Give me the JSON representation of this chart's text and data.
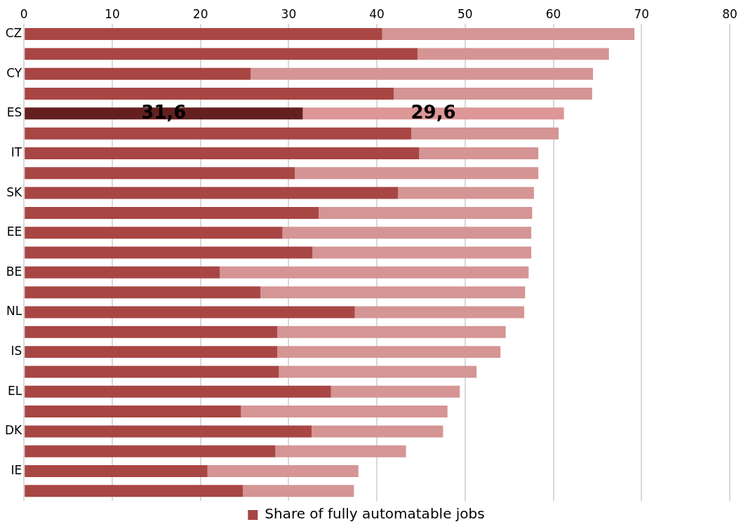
{
  "chart_data": {
    "type": "bar",
    "orientation": "horizontal",
    "stacked": true,
    "categories": [
      "CZ",
      null,
      "CY",
      null,
      "ES",
      null,
      "IT",
      null,
      "SK",
      null,
      "EE",
      null,
      "BE",
      null,
      "NL",
      null,
      "IS",
      null,
      "EL",
      null,
      "DK",
      null,
      "IE",
      null
    ],
    "series": [
      {
        "name": "Share of fully automatable jobs",
        "color": "#a84644",
        "colors": [
          "#a84644",
          "#a84644",
          "#a84644",
          "#a84644",
          "#64201f",
          "#a84644",
          "#a84644",
          "#a84644",
          "#a84644",
          "#a84644",
          "#a84644",
          "#a84644",
          "#a84644",
          "#a84644",
          "#a84644",
          "#a84644",
          "#a84644",
          "#a84644",
          "#a84644",
          "#a84644",
          "#a84644",
          "#a84644",
          "#a84644",
          "#a84644"
        ],
        "values": [
          40.6,
          44.6,
          25.7,
          41.9,
          31.6,
          43.9,
          44.8,
          30.7,
          42.4,
          33.4,
          29.3,
          32.7,
          22.2,
          26.8,
          37.5,
          28.7,
          28.7,
          28.9,
          34.8,
          24.6,
          32.6,
          28.5,
          20.8,
          24.8
        ],
        "value_labels": [
          null,
          null,
          null,
          null,
          "31,6",
          null,
          null,
          null,
          null,
          null,
          null,
          null,
          null,
          null,
          null,
          null,
          null,
          null,
          null,
          null,
          null,
          null,
          null,
          null
        ]
      },
      {
        "color": "#d49594",
        "colors": [
          "#d49594",
          "#d49594",
          "#d49594",
          "#d49594",
          "#dc9796",
          "#d49594",
          "#d49594",
          "#d49594",
          "#d49594",
          "#d49594",
          "#d49594",
          "#d49594",
          "#d49594",
          "#d49594",
          "#d49594",
          "#d49594",
          "#d49594",
          "#d49594",
          "#d49594",
          "#d49594",
          "#d49594",
          "#d49594",
          "#d49594",
          "#d49594"
        ],
        "values": [
          28.6,
          21.7,
          38.8,
          22.5,
          29.6,
          16.7,
          13.5,
          27.6,
          15.4,
          24.2,
          28.2,
          24.8,
          35.0,
          30.0,
          19.2,
          25.9,
          25.3,
          22.4,
          14.6,
          23.4,
          14.9,
          14.8,
          17.1,
          12.6
        ],
        "value_labels": [
          null,
          null,
          null,
          null,
          "29,6",
          null,
          null,
          null,
          null,
          null,
          null,
          null,
          null,
          null,
          null,
          null,
          null,
          null,
          null,
          null,
          null,
          null,
          null,
          null
        ]
      }
    ],
    "xlim": [
      0,
      80
    ],
    "xticks": [
      0,
      10,
      20,
      30,
      40,
      50,
      60,
      70,
      80
    ],
    "grid": "x",
    "legend": "bottom"
  }
}
